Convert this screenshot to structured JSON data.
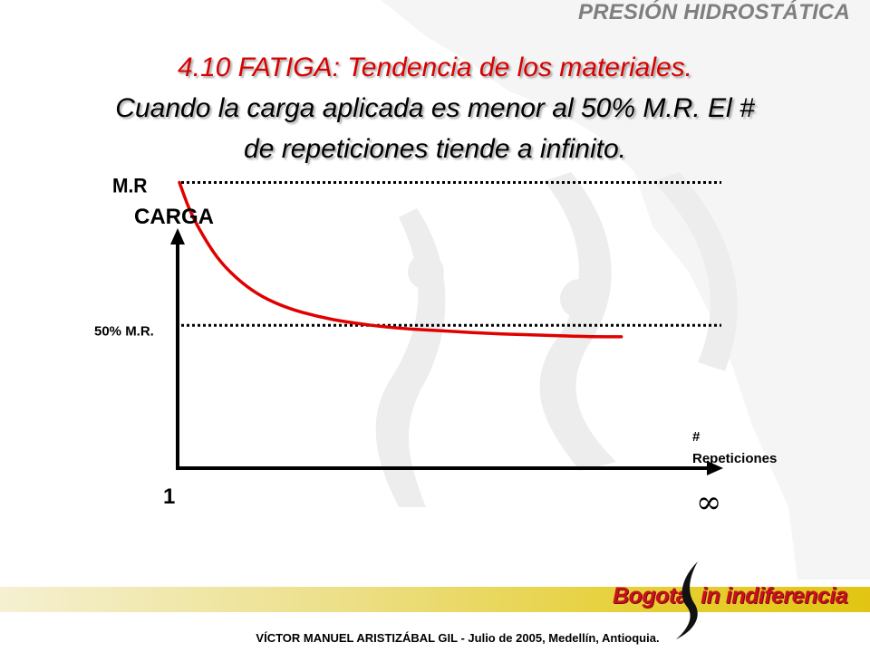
{
  "header": {
    "section": "PRESIÓN HIDROSTÁTICA"
  },
  "title": {
    "line1": "4.10 FATIGA: Tendencia de los materiales.",
    "line2": "Cuando la carga aplicada es menor al 50% M.R. El #",
    "line3": "de repeticiones tiende a infinito."
  },
  "chart_data": {
    "type": "line",
    "title": "",
    "ylabel": "CARGA",
    "xlabel": "# Repeticiones",
    "xlabel_line1": "#",
    "xlabel_line2": "Repeticiones",
    "x_start_label": "1",
    "x_end_label": "∞",
    "reference_lines": [
      {
        "label": "M.R",
        "value": 1.0
      },
      {
        "label": "50% M.R.",
        "value": 0.5
      }
    ],
    "ylim": [
      0,
      1.1
    ],
    "xlim": [
      0,
      1
    ],
    "grid": false,
    "series": [
      {
        "color": "#e00000",
        "points": [
          [
            0.0,
            1.0
          ],
          [
            0.02,
            0.9
          ],
          [
            0.05,
            0.8
          ],
          [
            0.08,
            0.72
          ],
          [
            0.12,
            0.65
          ],
          [
            0.16,
            0.6
          ],
          [
            0.21,
            0.56
          ],
          [
            0.27,
            0.53
          ],
          [
            0.33,
            0.51
          ],
          [
            0.42,
            0.49
          ],
          [
            0.52,
            0.48
          ],
          [
            0.62,
            0.47
          ],
          [
            0.72,
            0.465
          ],
          [
            0.8,
            0.46
          ],
          [
            0.86,
            0.46
          ]
        ]
      }
    ],
    "colors": {
      "axis": "#000000",
      "curve": "#e00000",
      "reference": "#000000"
    }
  },
  "footer": {
    "brand_part1": "Bogotá",
    "brand_part2": "in indiferencia",
    "credit": "VÍCTOR MANUEL ARISTIZÁBAL GIL  - Julio de 2005, Medellín, Antioquia."
  },
  "colors": {
    "header": "#7f7f7f",
    "title_accent": "#d80000",
    "brand": "#c8101e",
    "band_light": "#f5f0d2",
    "band_dark": "#e2c514"
  }
}
